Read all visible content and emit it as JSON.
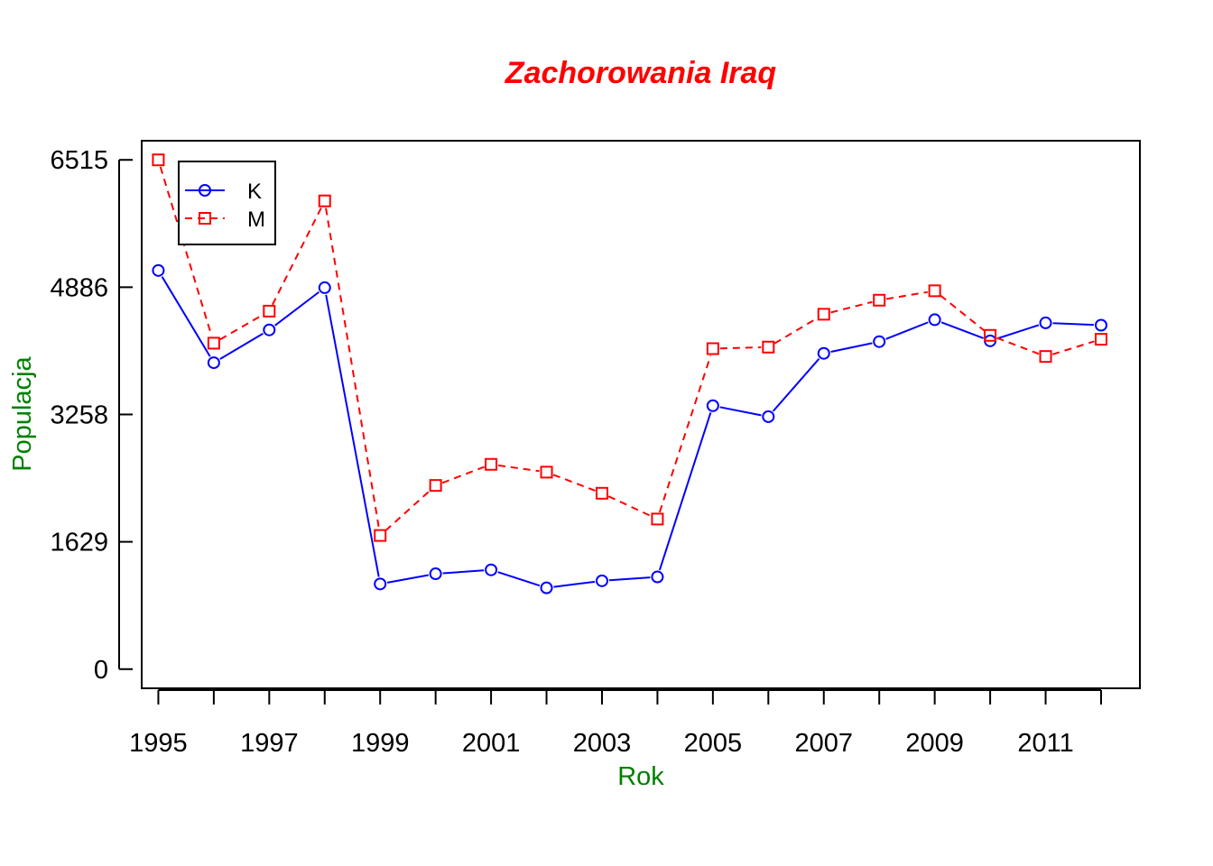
{
  "chart_data": {
    "type": "line",
    "title": "Zachorowania Iraq",
    "xlabel": "Rok",
    "ylabel": "Populacja",
    "x": [
      1995,
      1996,
      1997,
      1998,
      1999,
      2000,
      2001,
      2002,
      2003,
      2004,
      2005,
      2006,
      2007,
      2008,
      2009,
      2010,
      2011,
      2012
    ],
    "x_tick_labels": [
      "1995",
      "1997",
      "1999",
      "2001",
      "2003",
      "2005",
      "2007",
      "2009",
      "2011"
    ],
    "x_tick_values": [
      1995,
      1997,
      1999,
      2001,
      2003,
      2005,
      2007,
      2009,
      2011
    ],
    "y_tick_labels": [
      "0",
      "1629",
      "3258",
      "4886",
      "6515"
    ],
    "y_tick_values": [
      0,
      1629,
      3258,
      4886,
      6515
    ],
    "xlim": [
      1994.7,
      2012.7
    ],
    "ylim": [
      -245,
      6760
    ],
    "series": [
      {
        "name": "K",
        "color": "#0000ff",
        "line_style": "solid",
        "marker": "circle",
        "values": [
          5100,
          3920,
          4340,
          4880,
          1090,
          1220,
          1270,
          1040,
          1130,
          1180,
          3370,
          3230,
          4040,
          4190,
          4470,
          4200,
          4430,
          4400
        ]
      },
      {
        "name": "M",
        "color": "#ff0000",
        "line_style": "dashed",
        "marker": "square",
        "values": [
          6515,
          4170,
          4580,
          5990,
          1710,
          2350,
          2620,
          2520,
          2250,
          1920,
          4100,
          4120,
          4540,
          4720,
          4840,
          4270,
          4000,
          4220
        ]
      }
    ],
    "legend": {
      "position": "top-left",
      "entries": [
        "K",
        "M"
      ]
    },
    "grid": false,
    "title_color": "#ff0000",
    "axis_label_color": "#008000"
  }
}
